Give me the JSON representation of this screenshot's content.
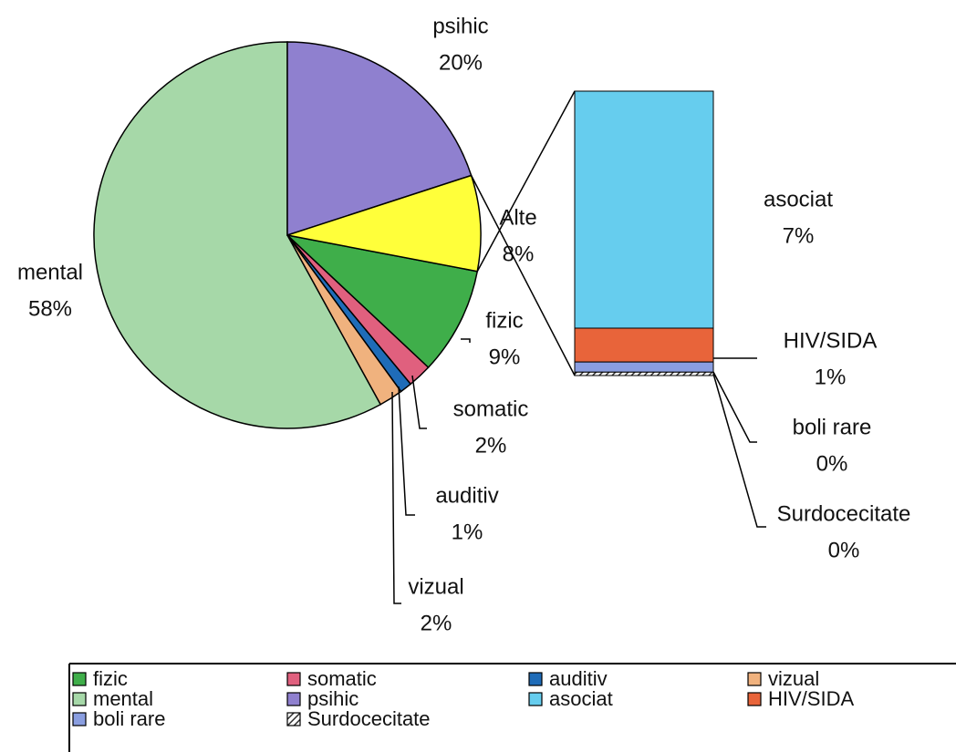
{
  "chart_data": {
    "type": "pie_of_bar",
    "slices": [
      {
        "name": "fizic",
        "value": 9,
        "label": "9%",
        "color": "#3fae4a"
      },
      {
        "name": "somatic",
        "value": 2,
        "label": "2%",
        "color": "#e0607e"
      },
      {
        "name": "auditiv",
        "value": 1,
        "label": "1%",
        "color": "#1f6cb8"
      },
      {
        "name": "vizual",
        "value": 2,
        "label": "2%",
        "color": "#f0b27e"
      },
      {
        "name": "mental",
        "value": 58,
        "label": "58%",
        "color": "#a6d8a8"
      },
      {
        "name": "psihic",
        "value": 20,
        "label": "20%",
        "color": "#8f80cf"
      }
    ],
    "other": {
      "name": "Alte",
      "value": 8,
      "label": "8%",
      "color": "#ffff3a"
    },
    "breakout": [
      {
        "name": "asociat",
        "value": 7,
        "label": "7%",
        "color": "#66cdee"
      },
      {
        "name": "HIV/SIDA",
        "value": 1,
        "label": "1%",
        "color": "#e8643a"
      },
      {
        "name": "boli rare",
        "value": 0.3,
        "label": "0%",
        "color": "#8a9ee0"
      },
      {
        "name": "Surdocecitate",
        "value": 0.1,
        "label": "0%",
        "color": "#555555",
        "pattern": "hatch"
      }
    ]
  }
}
